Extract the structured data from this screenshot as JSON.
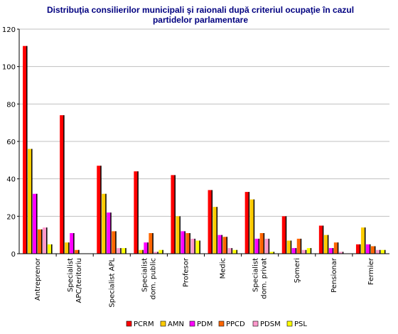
{
  "chart_data": {
    "type": "bar",
    "title_line1": "Distribuţia consilierilor municipali şi raionali după criteriul ocupaţie în cazul",
    "title_line2": "partidelor parlamentare",
    "xlabel": "",
    "ylabel": "",
    "ylim": [
      0,
      120
    ],
    "yticks": [
      0,
      20,
      40,
      60,
      80,
      100,
      120
    ],
    "grid": true,
    "legend_position": "bottom",
    "categories": [
      "Antreprenor",
      "Specialist APC/teritoriu",
      "Specialist APL",
      "Specialist dom. public",
      "Profesor",
      "Medic",
      "Specialist dom. privat",
      "Şomeri",
      "Pensionar",
      "Fermier"
    ],
    "series": [
      {
        "name": "PCRM",
        "color": "#ff0000",
        "values": [
          111,
          74,
          47,
          44,
          42,
          34,
          33,
          20,
          15,
          5
        ]
      },
      {
        "name": "AMN",
        "color": "#ffcc00",
        "values": [
          56,
          6,
          32,
          2,
          20,
          25,
          29,
          7,
          10,
          14
        ]
      },
      {
        "name": "PDM",
        "color": "#ff00ff",
        "values": [
          32,
          11,
          22,
          6,
          12,
          10,
          8,
          3,
          3,
          5
        ]
      },
      {
        "name": "PPCD",
        "color": "#ff6600",
        "values": [
          13,
          2,
          12,
          11,
          11,
          9,
          11,
          8,
          6,
          4
        ]
      },
      {
        "name": "PDSM",
        "color": "#ff99cc",
        "values": [
          14,
          0,
          3,
          1,
          8,
          3,
          8,
          2,
          1,
          2
        ]
      },
      {
        "name": "PSL",
        "color": "#ffff00",
        "values": [
          5,
          0,
          3,
          2,
          7,
          2,
          1,
          3,
          0,
          2
        ]
      }
    ]
  }
}
